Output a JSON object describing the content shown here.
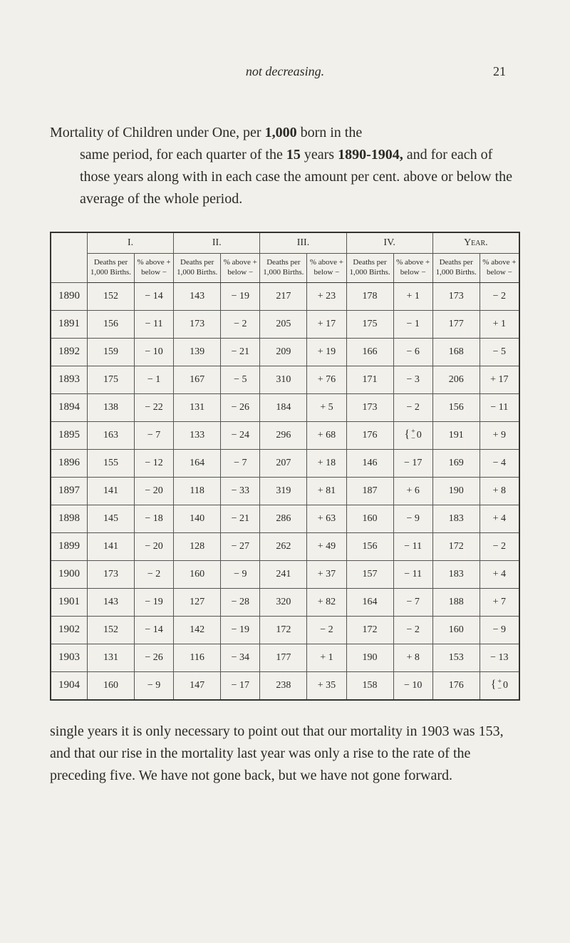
{
  "page": {
    "running_italic": "not decreasing.",
    "page_number": "21"
  },
  "intro": {
    "line1_a": "Mortality of Children under One, per ",
    "line1_b": "1,000",
    "line1_c": " born in the",
    "rest_a": "same period, for each quarter of the ",
    "rest_b": "15",
    "rest_c": " years ",
    "rest_d": "1890-1904,",
    "rest_e": " and for each of those years along with in each case the amount per cent. above or below the average of the whole period."
  },
  "table": {
    "head_top": [
      "",
      "I.",
      "II.",
      "III.",
      "IV.",
      "Year."
    ],
    "head_sub_deaths": "Deaths per 1,000 Births.",
    "head_sub_pct": "% above + below −",
    "rows": [
      {
        "year": "1890",
        "c": [
          "152",
          "− 14",
          "143",
          "− 19",
          "217",
          "+ 23",
          "178",
          "+  1",
          "173",
          "−  2"
        ]
      },
      {
        "year": "1891",
        "c": [
          "156",
          "− 11",
          "173",
          "−  2",
          "205",
          "+ 17",
          "175",
          "−  1",
          "177",
          "+  1"
        ]
      },
      {
        "year": "1892",
        "c": [
          "159",
          "− 10",
          "139",
          "− 21",
          "209",
          "+ 19",
          "166",
          "−  6",
          "168",
          "−  5"
        ]
      },
      {
        "year": "1893",
        "c": [
          "175",
          "−  1",
          "167",
          "−  5",
          "310",
          "+ 76",
          "171",
          "−  3",
          "206",
          "+ 17"
        ]
      },
      {
        "year": "1894",
        "c": [
          "138",
          "− 22",
          "131",
          "− 26",
          "184",
          "+  5",
          "173",
          "−  2",
          "156",
          "− 11"
        ]
      },
      {
        "year": "1895",
        "c": [
          "163",
          "−  7",
          "133",
          "− 24",
          "296",
          "+ 68",
          "176",
          "{± 0",
          "191",
          "+  9"
        ]
      },
      {
        "year": "1896",
        "c": [
          "155",
          "− 12",
          "164",
          "−  7",
          "207",
          "+ 18",
          "146",
          "− 17",
          "169",
          "−  4"
        ]
      },
      {
        "year": "1897",
        "c": [
          "141",
          "− 20",
          "118",
          "− 33",
          "319",
          "+ 81",
          "187",
          "+  6",
          "190",
          "+  8"
        ]
      },
      {
        "year": "1898",
        "c": [
          "145",
          "− 18",
          "140",
          "− 21",
          "286",
          "+ 63",
          "160",
          "−  9",
          "183",
          "+  4"
        ]
      },
      {
        "year": "1899",
        "c": [
          "141",
          "− 20",
          "128",
          "− 27",
          "262",
          "+ 49",
          "156",
          "− 11",
          "172",
          "−  2"
        ]
      },
      {
        "year": "1900",
        "c": [
          "173",
          "−  2",
          "160",
          "−  9",
          "241",
          "+ 37",
          "157",
          "− 11",
          "183",
          "+  4"
        ]
      },
      {
        "year": "1901",
        "c": [
          "143",
          "− 19",
          "127",
          "− 28",
          "320",
          "+ 82",
          "164",
          "−  7",
          "188",
          "+  7"
        ]
      },
      {
        "year": "1902",
        "c": [
          "152",
          "− 14",
          "142",
          "− 19",
          "172",
          "−  2",
          "172",
          "−  2",
          "160",
          "−  9"
        ]
      },
      {
        "year": "1903",
        "c": [
          "131",
          "− 26",
          "116",
          "− 34",
          "177",
          "+  1",
          "190",
          "+  8",
          "153",
          "− 13"
        ]
      },
      {
        "year": "1904",
        "c": [
          "160",
          "−  9",
          "147",
          "− 17",
          "238",
          "+ 35",
          "158",
          "− 10",
          "176",
          "{± 0"
        ]
      }
    ]
  },
  "outro": {
    "text": "single years it is only necessary to point out that our mortality in 1903 was 153, and that our rise in the mortality last year was only a rise to the rate of the preceding five.  We have not gone back, but we have not gone forward."
  }
}
